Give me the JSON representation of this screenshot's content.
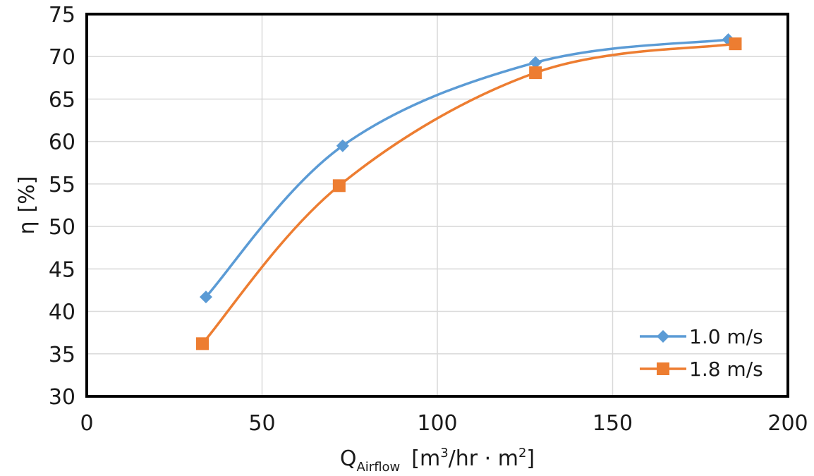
{
  "chart_data": {
    "type": "line",
    "title": "",
    "xlabel": {
      "main": "Q",
      "subscript": "Airflow",
      "units_open": "[m",
      "units_sup1": "3",
      "units_mid": "/hr · m",
      "units_sup2": "2",
      "units_close": "]"
    },
    "ylabel": {
      "symbol": "η",
      "units": "[%]"
    },
    "xlim": [
      0,
      200
    ],
    "ylim": [
      30,
      75
    ],
    "x_ticks": [
      "0",
      "50",
      "100",
      "150",
      "200"
    ],
    "y_ticks": [
      "30",
      "35",
      "40",
      "45",
      "50",
      "55",
      "60",
      "65",
      "70",
      "75"
    ],
    "grid": true,
    "legend_position": "bottom-right",
    "series": [
      {
        "name": "1.0 m/s",
        "color": "#5b9bd5",
        "marker": "diamond",
        "x": [
          34,
          73,
          128,
          183
        ],
        "y": [
          41.7,
          59.5,
          69.3,
          72.0
        ]
      },
      {
        "name": "1.8 m/s",
        "color": "#ed7d31",
        "marker": "square",
        "x": [
          33,
          72,
          128,
          185
        ],
        "y": [
          36.2,
          54.8,
          68.1,
          71.5
        ]
      }
    ]
  }
}
